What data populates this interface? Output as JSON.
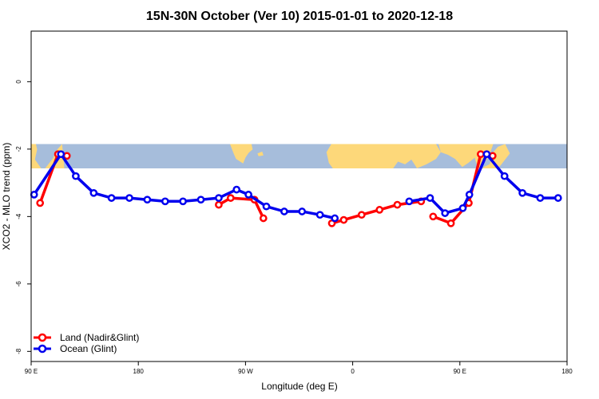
{
  "chart_data": {
    "type": "line",
    "title": "15N-30N October (Ver 10)   2015-01-01 to 2020-12-18",
    "xlabel": "Longitude (deg E)",
    "ylabel": "XCO2 - MLO trend (ppm)",
    "x_ticks": [
      {
        "value": 90,
        "label": "90 E"
      },
      {
        "value": 180,
        "label": "180"
      },
      {
        "value": 270,
        "label": "90 W"
      },
      {
        "value": 360,
        "label": "0"
      },
      {
        "value": 450,
        "label": "90 E"
      },
      {
        "value": 540,
        "label": "180"
      }
    ],
    "y_ticks": [
      {
        "value": 0,
        "label": "0"
      },
      {
        "value": -2,
        "label": "-2"
      },
      {
        "value": -4,
        "label": "-4"
      },
      {
        "value": -6,
        "label": "-6"
      },
      {
        "value": -8,
        "label": "-8"
      }
    ],
    "xlim": [
      90,
      540
    ],
    "ylim": [
      -8.3,
      1.5
    ],
    "map_band_yrange": [
      -1.85,
      -2.65
    ],
    "colors": {
      "land": "#ff0000",
      "ocean": "#0000ee",
      "map_ocean": "#a6bddb",
      "map_land": "#fdd87a"
    },
    "series": [
      {
        "name": "Land (Nadir&Glint)",
        "segments": [
          [
            [
              97.5,
              -3.6
            ],
            [
              112.5,
              -2.15
            ],
            [
              120,
              -2.2
            ]
          ],
          [
            [
              247.5,
              -3.65
            ],
            [
              257.5,
              -3.45
            ],
            [
              277.5,
              -3.5
            ],
            [
              285,
              -4.05
            ]
          ],
          [
            [
              342.5,
              -4.2
            ],
            [
              352.5,
              -4.1
            ],
            [
              367.5,
              -3.95
            ],
            [
              382.5,
              -3.8
            ],
            [
              397.5,
              -3.65
            ],
            [
              417.5,
              -3.55
            ]
          ],
          [
            [
              427.5,
              -4.0
            ],
            [
              442.5,
              -4.2
            ],
            [
              457.5,
              -3.6
            ],
            [
              467.5,
              -2.15
            ],
            [
              477.5,
              -2.2
            ]
          ]
        ]
      },
      {
        "name": "Ocean (Glint)",
        "segments": [
          [
            [
              92.5,
              -3.35
            ],
            [
              115,
              -2.15
            ],
            [
              127.5,
              -2.8
            ],
            [
              142.5,
              -3.3
            ],
            [
              157.5,
              -3.45
            ],
            [
              172.5,
              -3.45
            ],
            [
              187.5,
              -3.5
            ],
            [
              202.5,
              -3.55
            ],
            [
              217.5,
              -3.55
            ],
            [
              232.5,
              -3.5
            ],
            [
              247.5,
              -3.45
            ],
            [
              262.5,
              -3.2
            ],
            [
              272.5,
              -3.35
            ],
            [
              287.5,
              -3.7
            ],
            [
              302.5,
              -3.85
            ],
            [
              317.5,
              -3.85
            ],
            [
              332.5,
              -3.95
            ],
            [
              345,
              -4.05
            ]
          ],
          [
            [
              407.5,
              -3.55
            ],
            [
              425,
              -3.45
            ],
            [
              437.5,
              -3.9
            ],
            [
              452.5,
              -3.75
            ],
            [
              458,
              -3.35
            ],
            [
              472.5,
              -2.15
            ],
            [
              487.5,
              -2.8
            ],
            [
              502.5,
              -3.3
            ],
            [
              517.5,
              -3.45
            ],
            [
              532.5,
              -3.45
            ]
          ]
        ]
      }
    ]
  }
}
